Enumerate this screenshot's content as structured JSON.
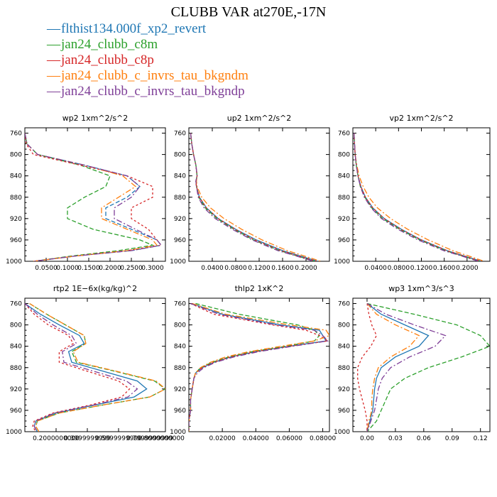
{
  "title": "CLUBB VAR at270E,-17N",
  "legend": [
    {
      "label": "flthist134.000f_xp2_revert",
      "color": "#1f77b4"
    },
    {
      "label": "jan24_clubb_c8m",
      "color": "#2ca02c"
    },
    {
      "label": "jan24_clubb_c8p",
      "color": "#d62728"
    },
    {
      "label": "jan24_clubb_c_invrs_tau_bkgndm",
      "color": "#ff7f0e"
    },
    {
      "label": "jan24_clubb_c_invrs_tau_bkgndp",
      "color": "#7f3f98"
    }
  ],
  "chart_data": [
    {
      "type": "line",
      "title": "wp2   1xm^2/s^2",
      "ylim": [
        1000,
        750
      ],
      "yticks": [
        760,
        800,
        840,
        880,
        920,
        960,
        1000
      ],
      "xlim": [
        0,
        0.33
      ],
      "xticks": [
        0.05,
        0.1,
        0.15,
        0.2,
        0.25,
        0.3
      ],
      "xticklabels": [
        "0.0500",
        "0.1000",
        "0.1500",
        "0.2000",
        "0.2500",
        "0.3000"
      ],
      "y": [
        760,
        780,
        800,
        820,
        840,
        860,
        880,
        900,
        920,
        940,
        960,
        970,
        980,
        990,
        1000
      ],
      "series": [
        {
          "color": "#1f77b4",
          "dash": "6,3",
          "values": [
            0.0,
            0.005,
            0.03,
            0.14,
            0.24,
            0.27,
            0.24,
            0.19,
            0.19,
            0.25,
            0.31,
            0.32,
            0.25,
            0.12,
            0.02
          ]
        },
        {
          "color": "#2ca02c",
          "dash": "6,3",
          "values": [
            0.0,
            0.005,
            0.03,
            0.13,
            0.2,
            0.19,
            0.14,
            0.1,
            0.1,
            0.16,
            0.27,
            0.3,
            0.22,
            0.11,
            0.02
          ]
        },
        {
          "color": "#d62728",
          "dash": "3,3",
          "values": [
            0.0,
            0.003,
            0.02,
            0.13,
            0.24,
            0.3,
            0.3,
            0.25,
            0.25,
            0.29,
            0.31,
            0.32,
            0.24,
            0.12,
            0.02
          ]
        },
        {
          "color": "#ff7f0e",
          "dash": "8,3,2,3",
          "values": [
            0.0,
            0.005,
            0.03,
            0.14,
            0.23,
            0.26,
            0.22,
            0.18,
            0.18,
            0.24,
            0.3,
            0.31,
            0.24,
            0.12,
            0.02
          ]
        },
        {
          "color": "#7f3f98",
          "dash": "8,3,2,3",
          "values": [
            0.0,
            0.005,
            0.03,
            0.14,
            0.24,
            0.27,
            0.25,
            0.21,
            0.21,
            0.26,
            0.31,
            0.32,
            0.25,
            0.12,
            0.02
          ]
        }
      ]
    },
    {
      "type": "line",
      "title": "up2   1xm^2/s^2",
      "ylim": [
        1000,
        750
      ],
      "yticks": [
        760,
        800,
        840,
        880,
        920,
        960,
        1000
      ],
      "xlim": [
        0,
        0.24
      ],
      "xticks": [
        0.04,
        0.08,
        0.12,
        0.16,
        0.2
      ],
      "xticklabels": [
        "0.0400",
        "0.0800",
        "0.1200",
        "0.1600",
        "0.2000"
      ],
      "y": [
        760,
        780,
        800,
        820,
        840,
        850,
        860,
        880,
        900,
        920,
        940,
        960,
        980,
        990,
        1000
      ],
      "series": [
        {
          "color": "#1f77b4",
          "dash": "",
          "values": [
            0.003,
            0.005,
            0.008,
            0.012,
            0.014,
            0.012,
            0.013,
            0.018,
            0.03,
            0.05,
            0.08,
            0.115,
            0.16,
            0.19,
            0.22
          ]
        },
        {
          "color": "#2ca02c",
          "dash": "6,3",
          "values": [
            0.003,
            0.005,
            0.008,
            0.012,
            0.014,
            0.012,
            0.013,
            0.017,
            0.028,
            0.048,
            0.077,
            0.11,
            0.155,
            0.185,
            0.215
          ]
        },
        {
          "color": "#d62728",
          "dash": "3,3",
          "values": [
            0.003,
            0.005,
            0.008,
            0.012,
            0.014,
            0.012,
            0.013,
            0.018,
            0.03,
            0.05,
            0.079,
            0.113,
            0.158,
            0.188,
            0.218
          ]
        },
        {
          "color": "#ff7f0e",
          "dash": "8,3,2,3",
          "values": [
            0.003,
            0.005,
            0.008,
            0.012,
            0.014,
            0.013,
            0.014,
            0.022,
            0.037,
            0.06,
            0.09,
            0.125,
            0.168,
            0.197,
            0.225
          ]
        },
        {
          "color": "#7f3f98",
          "dash": "8,3,2,3",
          "values": [
            0.003,
            0.005,
            0.008,
            0.012,
            0.014,
            0.012,
            0.013,
            0.016,
            0.026,
            0.045,
            0.074,
            0.108,
            0.152,
            0.183,
            0.213
          ]
        }
      ]
    },
    {
      "type": "line",
      "title": "vp2   1xm^2/s^2",
      "ylim": [
        1000,
        750
      ],
      "yticks": [
        760,
        800,
        840,
        880,
        920,
        960,
        1000
      ],
      "xlim": [
        0,
        0.24
      ],
      "xticks": [
        0.04,
        0.08,
        0.12,
        0.16,
        0.2
      ],
      "xticklabels": [
        "0.0400",
        "0.0800",
        "0.1200",
        "0.1600",
        "0.2000"
      ],
      "y": [
        760,
        780,
        800,
        820,
        840,
        860,
        880,
        900,
        920,
        940,
        960,
        980,
        990,
        1000
      ],
      "series": [
        {
          "color": "#1f77b4",
          "dash": "",
          "values": [
            0.002,
            0.003,
            0.004,
            0.006,
            0.009,
            0.014,
            0.022,
            0.035,
            0.055,
            0.085,
            0.12,
            0.165,
            0.195,
            0.225
          ]
        },
        {
          "color": "#2ca02c",
          "dash": "6,3",
          "values": [
            0.002,
            0.003,
            0.004,
            0.006,
            0.009,
            0.013,
            0.021,
            0.033,
            0.052,
            0.082,
            0.117,
            0.162,
            0.192,
            0.222
          ]
        },
        {
          "color": "#d62728",
          "dash": "3,3",
          "values": [
            0.002,
            0.003,
            0.004,
            0.006,
            0.009,
            0.014,
            0.022,
            0.035,
            0.055,
            0.084,
            0.12,
            0.165,
            0.195,
            0.225
          ]
        },
        {
          "color": "#ff7f0e",
          "dash": "8,3,2,3",
          "values": [
            0.002,
            0.003,
            0.004,
            0.007,
            0.011,
            0.018,
            0.028,
            0.043,
            0.066,
            0.096,
            0.132,
            0.175,
            0.203,
            0.23
          ]
        },
        {
          "color": "#7f3f98",
          "dash": "8,3,2,3",
          "values": [
            0.002,
            0.003,
            0.004,
            0.006,
            0.009,
            0.013,
            0.02,
            0.032,
            0.05,
            0.079,
            0.114,
            0.159,
            0.19,
            0.22
          ]
        }
      ]
    },
    {
      "type": "line",
      "title": "rtp2   1E−6x(kg/kg)^2",
      "ylim": [
        1000,
        750
      ],
      "yticks": [
        760,
        800,
        840,
        880,
        920,
        960,
        1000
      ],
      "xlim": [
        0,
        0.9
      ],
      "xticks": [
        0.2,
        0.4,
        0.6,
        0.8
      ],
      "xticklabels": [
        "0.2000000000",
        "0.3999999999",
        "0.5999999999",
        "0.7999999999"
      ],
      "xticklabels_extra": "0.8000000000",
      "y": [
        760,
        780,
        800,
        820,
        835,
        850,
        870,
        885,
        905,
        920,
        935,
        950,
        965,
        980,
        990,
        1000
      ],
      "series": [
        {
          "color": "#1f77b4",
          "dash": "",
          "values": [
            0.0,
            0.1,
            0.22,
            0.35,
            0.38,
            0.28,
            0.3,
            0.48,
            0.72,
            0.78,
            0.7,
            0.45,
            0.2,
            0.07,
            0.06,
            0.08
          ]
        },
        {
          "color": "#2ca02c",
          "dash": "6,3",
          "values": [
            0.03,
            0.14,
            0.26,
            0.38,
            0.39,
            0.3,
            0.33,
            0.55,
            0.83,
            0.9,
            0.8,
            0.5,
            0.22,
            0.08,
            0.07,
            0.09
          ]
        },
        {
          "color": "#d62728",
          "dash": "3,3",
          "values": [
            0.0,
            0.06,
            0.15,
            0.28,
            0.31,
            0.22,
            0.22,
            0.38,
            0.6,
            0.67,
            0.62,
            0.42,
            0.18,
            0.06,
            0.05,
            0.07
          ]
        },
        {
          "color": "#ff7f0e",
          "dash": "8,3,2,3",
          "values": [
            0.03,
            0.14,
            0.26,
            0.38,
            0.39,
            0.31,
            0.34,
            0.56,
            0.84,
            0.9,
            0.8,
            0.5,
            0.22,
            0.08,
            0.07,
            0.09
          ]
        },
        {
          "color": "#7f3f98",
          "dash": "8,3,2,3",
          "values": [
            0.0,
            0.08,
            0.18,
            0.3,
            0.33,
            0.24,
            0.25,
            0.42,
            0.65,
            0.72,
            0.66,
            0.44,
            0.19,
            0.07,
            0.06,
            0.08
          ]
        }
      ]
    },
    {
      "type": "line",
      "title": "thlp2   1xK^2",
      "ylim": [
        1000,
        750
      ],
      "yticks": [
        760,
        800,
        840,
        880,
        920,
        960,
        1000
      ],
      "xlim": [
        0,
        0.084
      ],
      "xticks": [
        0.02,
        0.04,
        0.06,
        0.08
      ],
      "xticklabels": [
        "0.02000",
        "0.04000",
        "0.06000",
        "0.08000"
      ],
      "y": [
        760,
        780,
        800,
        810,
        820,
        830,
        840,
        850,
        860,
        870,
        880,
        890,
        900,
        920,
        940,
        960,
        980,
        1000
      ],
      "series": [
        {
          "color": "#1f77b4",
          "dash": "",
          "values": [
            0.002,
            0.02,
            0.055,
            0.078,
            0.08,
            0.082,
            0.06,
            0.04,
            0.025,
            0.015,
            0.008,
            0.004,
            0.003,
            0.002,
            0.001,
            0.001,
            0.0,
            0.0
          ]
        },
        {
          "color": "#2ca02c",
          "dash": "6,3",
          "values": [
            0.004,
            0.03,
            0.065,
            0.075,
            0.078,
            0.075,
            0.058,
            0.038,
            0.024,
            0.014,
            0.007,
            0.004,
            0.003,
            0.002,
            0.001,
            0.001,
            0.0,
            0.0
          ]
        },
        {
          "color": "#d62728",
          "dash": "3,3",
          "values": [
            0.001,
            0.015,
            0.05,
            0.07,
            0.078,
            0.083,
            0.06,
            0.04,
            0.025,
            0.015,
            0.008,
            0.004,
            0.003,
            0.002,
            0.001,
            0.001,
            0.0,
            0.0
          ]
        },
        {
          "color": "#ff7f0e",
          "dash": "8,3,2,3",
          "values": [
            0.002,
            0.022,
            0.06,
            0.082,
            0.084,
            0.075,
            0.055,
            0.036,
            0.022,
            0.013,
            0.007,
            0.004,
            0.003,
            0.002,
            0.001,
            0.001,
            0.0,
            0.0
          ]
        },
        {
          "color": "#7f3f98",
          "dash": "8,3,2,3",
          "values": [
            0.001,
            0.018,
            0.052,
            0.075,
            0.08,
            0.083,
            0.062,
            0.042,
            0.027,
            0.016,
            0.009,
            0.005,
            0.003,
            0.002,
            0.001,
            0.001,
            0.0,
            0.0
          ]
        }
      ]
    },
    {
      "type": "line",
      "title": "wp3   1xm^3/s^3",
      "ylim": [
        1000,
        750
      ],
      "yticks": [
        760,
        800,
        840,
        880,
        920,
        960,
        1000
      ],
      "xlim": [
        -0.015,
        0.13
      ],
      "xticks": [
        0.0,
        0.03,
        0.06,
        0.09,
        0.12
      ],
      "xticklabels": [
        "0.00",
        "0.03",
        "0.06",
        "0.09",
        "0.12"
      ],
      "y": [
        760,
        780,
        800,
        820,
        840,
        860,
        880,
        900,
        920,
        940,
        960,
        980,
        1000
      ],
      "series": [
        {
          "color": "#1f77b4",
          "dash": "",
          "values": [
            0.0,
            0.015,
            0.04,
            0.065,
            0.055,
            0.03,
            0.015,
            0.01,
            0.008,
            0.007,
            0.006,
            0.003,
            0.0
          ]
        },
        {
          "color": "#2ca02c",
          "dash": "6,3",
          "values": [
            0.0,
            0.05,
            0.095,
            0.12,
            0.13,
            0.1,
            0.065,
            0.04,
            0.025,
            0.02,
            0.015,
            0.01,
            0.0
          ]
        },
        {
          "color": "#d62728",
          "dash": "3,3",
          "values": [
            0.0,
            0.002,
            0.005,
            0.01,
            0.004,
            -0.005,
            -0.01,
            -0.01,
            -0.008,
            -0.005,
            -0.002,
            0.0,
            0.0
          ]
        },
        {
          "color": "#ff7f0e",
          "dash": "8,3,2,3",
          "values": [
            0.0,
            0.01,
            0.03,
            0.055,
            0.045,
            0.025,
            0.012,
            0.008,
            0.006,
            0.005,
            0.005,
            0.002,
            0.0
          ]
        },
        {
          "color": "#7f3f98",
          "dash": "8,3,2,3",
          "values": [
            0.0,
            0.02,
            0.05,
            0.083,
            0.072,
            0.045,
            0.025,
            0.016,
            0.012,
            0.01,
            0.008,
            0.004,
            0.0
          ]
        }
      ]
    }
  ]
}
